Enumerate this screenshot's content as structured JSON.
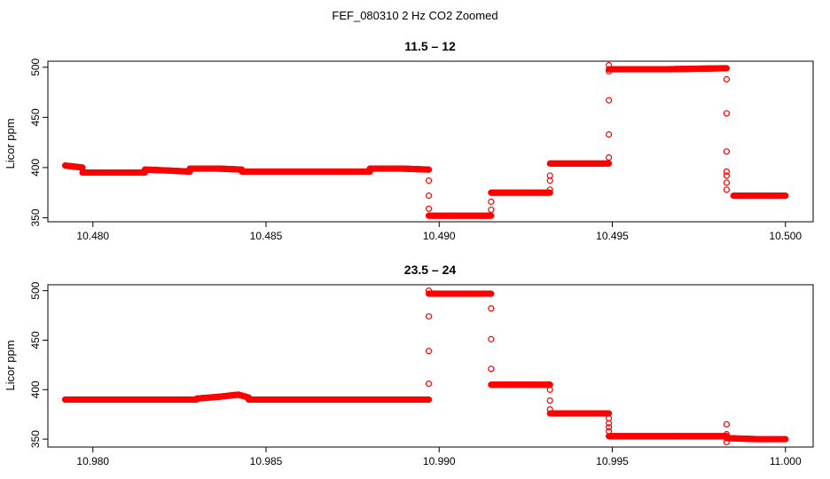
{
  "figure": {
    "title": "FEF_080310  2 Hz CO2 Zoomed"
  },
  "chart_data": [
    {
      "type": "scatter",
      "title": "11.5 – 12",
      "xlabel": "",
      "ylabel": "Licor ppm",
      "xlim": [
        10.4787,
        10.5008
      ],
      "ylim": [
        346,
        506
      ],
      "x_ticks": [
        10.48,
        10.485,
        10.49,
        10.495,
        10.5
      ],
      "x_tick_labels": [
        "10.480",
        "10.485",
        "10.490",
        "10.495",
        "10.500"
      ],
      "y_ticks": [
        350,
        400,
        450,
        500
      ],
      "y_tick_labels": [
        "350",
        "400",
        "450",
        "500"
      ],
      "grid": false,
      "marker_color": "#ff0000",
      "marker": "open-circle",
      "segments": [
        {
          "x_start": 10.4792,
          "x_end": 10.4797,
          "points": [
            [
              10.4792,
              402
            ],
            [
              10.4797,
              400
            ]
          ]
        },
        {
          "x_start": 10.4797,
          "x_end": 10.4815,
          "points": [
            [
              10.4797,
              395
            ],
            [
              10.4805,
              395
            ],
            [
              10.4815,
              395
            ]
          ]
        },
        {
          "x_start": 10.4815,
          "x_end": 10.4828,
          "points": [
            [
              10.4815,
              398
            ],
            [
              10.4822,
              397
            ],
            [
              10.4828,
              396
            ]
          ]
        },
        {
          "x_start": 10.4828,
          "x_end": 10.4843,
          "points": [
            [
              10.4828,
              399
            ],
            [
              10.4836,
              399
            ],
            [
              10.4843,
              398
            ]
          ]
        },
        {
          "x_start": 10.4843,
          "x_end": 10.488,
          "points": [
            [
              10.4843,
              396
            ],
            [
              10.486,
              396
            ],
            [
              10.488,
              396
            ]
          ]
        },
        {
          "x_start": 10.488,
          "x_end": 10.4897,
          "points": [
            [
              10.488,
              399
            ],
            [
              10.4889,
              399
            ],
            [
              10.4897,
              398
            ]
          ]
        },
        {
          "x_start": 10.4897,
          "x_end": 10.4915,
          "points": [
            [
              10.4897,
              352
            ],
            [
              10.4906,
              352
            ],
            [
              10.4915,
              352
            ]
          ]
        },
        {
          "x_start": 10.4915,
          "x_end": 10.4932,
          "points": [
            [
              10.4915,
              375
            ],
            [
              10.4924,
              375
            ],
            [
              10.4932,
              375
            ]
          ]
        },
        {
          "x_start": 10.4932,
          "x_end": 10.4949,
          "points": [
            [
              10.4932,
              404
            ],
            [
              10.4941,
              404
            ],
            [
              10.4949,
              404
            ]
          ]
        },
        {
          "x_start": 10.4949,
          "x_end": 10.4983,
          "points": [
            [
              10.4949,
              498
            ],
            [
              10.4966,
              498
            ],
            [
              10.4983,
              499
            ]
          ]
        },
        {
          "x_start": 10.4985,
          "x_end": 10.5,
          "points": [
            [
              10.4985,
              372
            ],
            [
              10.4992,
              372
            ],
            [
              10.5,
              372
            ]
          ]
        }
      ],
      "transitions": [
        [
          10.4897,
          387
        ],
        [
          10.4897,
          372
        ],
        [
          10.4897,
          359
        ],
        [
          10.4915,
          358
        ],
        [
          10.4915,
          366
        ],
        [
          10.4932,
          378
        ],
        [
          10.4932,
          387
        ],
        [
          10.4932,
          392
        ],
        [
          10.4949,
          410
        ],
        [
          10.4949,
          433
        ],
        [
          10.4949,
          467
        ],
        [
          10.4949,
          496
        ],
        [
          10.4949,
          502
        ],
        [
          10.4983,
          488
        ],
        [
          10.4983,
          454
        ],
        [
          10.4983,
          416
        ],
        [
          10.4983,
          396
        ],
        [
          10.4983,
          392
        ],
        [
          10.4983,
          385
        ],
        [
          10.4983,
          378
        ]
      ]
    },
    {
      "type": "scatter",
      "title": "23.5 – 24",
      "xlabel": "",
      "ylabel": "Licor ppm",
      "xlim": [
        10.9787,
        11.0008
      ],
      "ylim": [
        342,
        506
      ],
      "x_ticks": [
        10.98,
        10.985,
        10.99,
        10.995,
        11.0
      ],
      "x_tick_labels": [
        "10.980",
        "10.985",
        "10.990",
        "10.995",
        "11.000"
      ],
      "y_ticks": [
        350,
        400,
        450,
        500
      ],
      "y_tick_labels": [
        "350",
        "400",
        "450",
        "500"
      ],
      "grid": false,
      "marker_color": "#ff0000",
      "marker": "open-circle",
      "segments": [
        {
          "x_start": 10.9792,
          "x_end": 10.983,
          "points": [
            [
              10.9792,
              390
            ],
            [
              10.981,
              390
            ],
            [
              10.983,
              390
            ]
          ]
        },
        {
          "x_start": 10.983,
          "x_end": 10.9845,
          "points": [
            [
              10.983,
              391
            ],
            [
              10.9837,
              393
            ],
            [
              10.9842,
              395
            ],
            [
              10.9845,
              392
            ]
          ]
        },
        {
          "x_start": 10.9845,
          "x_end": 10.9897,
          "points": [
            [
              10.9845,
              390
            ],
            [
              10.987,
              390
            ],
            [
              10.9897,
              390
            ]
          ]
        },
        {
          "x_start": 10.9897,
          "x_end": 10.9915,
          "points": [
            [
              10.9897,
              497
            ],
            [
              10.9906,
              497
            ],
            [
              10.9915,
              497
            ]
          ]
        },
        {
          "x_start": 10.9915,
          "x_end": 10.9932,
          "points": [
            [
              10.9915,
              405
            ],
            [
              10.9924,
              405
            ],
            [
              10.9932,
              405
            ]
          ]
        },
        {
          "x_start": 10.9932,
          "x_end": 10.9949,
          "points": [
            [
              10.9932,
              376
            ],
            [
              10.9941,
              376
            ],
            [
              10.9949,
              376
            ]
          ]
        },
        {
          "x_start": 10.9949,
          "x_end": 10.9983,
          "points": [
            [
              10.9949,
              353
            ],
            [
              10.9966,
              353
            ],
            [
              10.9983,
              353
            ]
          ]
        },
        {
          "x_start": 10.9983,
          "x_end": 11.0,
          "points": [
            [
              10.9983,
              351
            ],
            [
              10.9992,
              350
            ],
            [
              11.0,
              350
            ]
          ]
        }
      ],
      "transitions": [
        [
          10.9897,
          406
        ],
        [
          10.9897,
          439
        ],
        [
          10.9897,
          474
        ],
        [
          10.9897,
          500
        ],
        [
          10.9915,
          482
        ],
        [
          10.9915,
          451
        ],
        [
          10.9915,
          421
        ],
        [
          10.9932,
          400
        ],
        [
          10.9932,
          389
        ],
        [
          10.9932,
          380
        ],
        [
          10.9949,
          371
        ],
        [
          10.9949,
          366
        ],
        [
          10.9949,
          362
        ],
        [
          10.9949,
          358
        ],
        [
          10.9983,
          365
        ],
        [
          10.9983,
          355
        ],
        [
          10.9983,
          347
        ]
      ]
    }
  ]
}
